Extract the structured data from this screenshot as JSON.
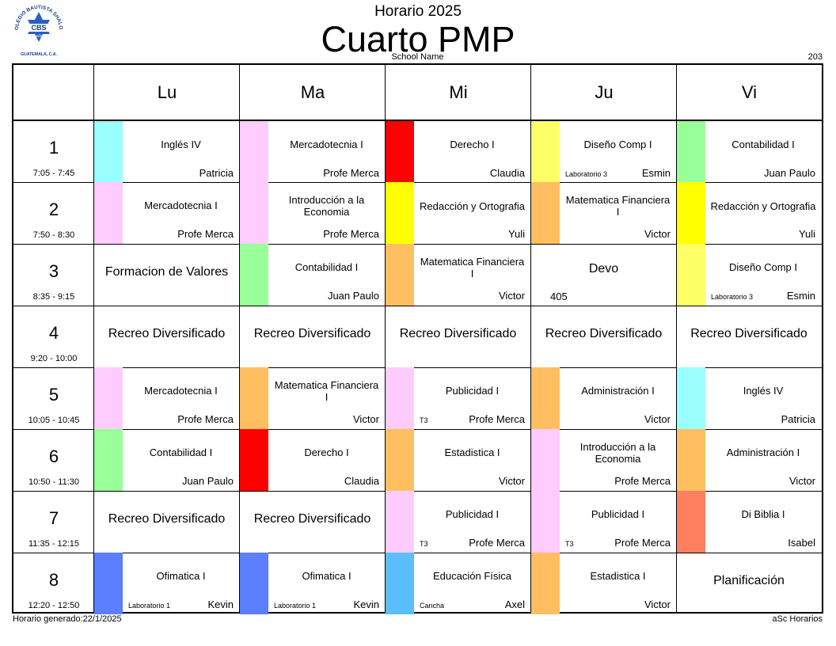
{
  "header": {
    "logo_text": {
      "top": "COLEGIO BAUTISTA SHALOM",
      "initials": "CBS",
      "script": "Shalom",
      "bottom": "GUATEMALA, C.A."
    },
    "supertitle": "Horario 2025",
    "title": "Cuarto PMP",
    "school_name": "School Name",
    "room": "203"
  },
  "footer": {
    "generated": "Horario generado:22/1/2025",
    "brand": "aSc Horarios"
  },
  "days": [
    "Lu",
    "Ma",
    "Mi",
    "Ju",
    "Vi"
  ],
  "periods": [
    {
      "num": "1",
      "time": "7:05 - 7:45"
    },
    {
      "num": "2",
      "time": "7:50 - 8:30"
    },
    {
      "num": "3",
      "time": "8:35 - 9:15"
    },
    {
      "num": "4",
      "time": "9:20 - 10:00"
    },
    {
      "num": "5",
      "time": "10:05 - 10:45"
    },
    {
      "num": "6",
      "time": "10:50 - 11:30"
    },
    {
      "num": "7",
      "time": "11:35 - 12:15"
    },
    {
      "num": "8",
      "time": "12:20 - 12:50"
    }
  ],
  "rows": [
    [
      {
        "subject": "Inglés IV",
        "teacher": "Patricia",
        "room": "",
        "color": "#99ffff"
      },
      {
        "subject": "Mercadotecnia I",
        "teacher": "Profe Merca",
        "room": "",
        "color": "#ffccff"
      },
      {
        "subject": "Derecho I",
        "teacher": "Claudia",
        "room": "",
        "color": "#ff0000"
      },
      {
        "subject": "Diseño Comp I",
        "teacher": "Esmin",
        "room": "Laboratorio 3",
        "color": "#ffff66"
      },
      {
        "subject": "Contabilidad I",
        "teacher": "Juan Paulo",
        "room": "",
        "color": "#99ff99"
      }
    ],
    [
      {
        "subject": "Mercadotecnia I",
        "teacher": "Profe Merca",
        "room": "",
        "color": "#ffccff"
      },
      {
        "subject": "Introducción a la Economia",
        "teacher": "Profe Merca",
        "room": "",
        "color": "#ffccff"
      },
      {
        "subject": "Redacción y Ortografia",
        "teacher": "Yuli",
        "room": "",
        "color": "#ffff00"
      },
      {
        "subject": "Matematica Financiera I",
        "teacher": "Victor",
        "room": "",
        "color": "#ffbf60"
      },
      {
        "subject": "Redacción y Ortografia",
        "teacher": "Yuli",
        "room": "",
        "color": "#ffff00"
      }
    ],
    [
      {
        "subject": "Formacion de Valores",
        "teacher": "",
        "room": "",
        "color": ""
      },
      {
        "subject": "Contabilidad I",
        "teacher": "Juan Paulo",
        "room": "",
        "color": "#99ff99"
      },
      {
        "subject": "Matematica Financiera I",
        "teacher": "Victor",
        "room": "",
        "color": "#ffbf60"
      },
      {
        "subject": "Devo",
        "teacher": "",
        "room": "405",
        "color": ""
      },
      {
        "subject": "Diseño Comp I",
        "teacher": "Esmin",
        "room": "Laboratorio 3",
        "color": "#ffff66"
      }
    ],
    [
      {
        "subject": "Recreo Diversificado",
        "teacher": "",
        "room": "",
        "color": ""
      },
      {
        "subject": "Recreo Diversificado",
        "teacher": "",
        "room": "",
        "color": ""
      },
      {
        "subject": "Recreo Diversificado",
        "teacher": "",
        "room": "",
        "color": ""
      },
      {
        "subject": "Recreo Diversificado",
        "teacher": "",
        "room": "",
        "color": ""
      },
      {
        "subject": "Recreo Diversificado",
        "teacher": "",
        "room": "",
        "color": ""
      }
    ],
    [
      {
        "subject": "Mercadotecnia I",
        "teacher": "Profe Merca",
        "room": "",
        "color": "#ffccff"
      },
      {
        "subject": "Matematica Financiera I",
        "teacher": "Victor",
        "room": "",
        "color": "#ffbf60"
      },
      {
        "subject": "Publicidad I",
        "teacher": "Profe Merca",
        "room": "T3",
        "color": "#ffccff"
      },
      {
        "subject": "Administración I",
        "teacher": "Victor",
        "room": "",
        "color": "#ffbf60"
      },
      {
        "subject": "Inglés IV",
        "teacher": "Patricia",
        "room": "",
        "color": "#99ffff"
      }
    ],
    [
      {
        "subject": "Contabilidad I",
        "teacher": "Juan Paulo",
        "room": "",
        "color": "#99ff99"
      },
      {
        "subject": "Derecho I",
        "teacher": "Claudia",
        "room": "",
        "color": "#ff0000"
      },
      {
        "subject": "Estadistica I",
        "teacher": "Victor",
        "room": "",
        "color": "#ffbf60"
      },
      {
        "subject": "Introducción a la Economia",
        "teacher": "Profe Merca",
        "room": "",
        "color": "#ffccff"
      },
      {
        "subject": "Administración I",
        "teacher": "Victor",
        "room": "",
        "color": "#ffbf60"
      }
    ],
    [
      {
        "subject": "Recreo Diversificado",
        "teacher": "",
        "room": "",
        "color": ""
      },
      {
        "subject": "Recreo Diversificado",
        "teacher": "",
        "room": "",
        "color": ""
      },
      {
        "subject": "Publicidad I",
        "teacher": "Profe Merca",
        "room": "T3",
        "color": "#ffccff"
      },
      {
        "subject": "Publicidad I",
        "teacher": "Profe Merca",
        "room": "T3",
        "color": "#ffccff"
      },
      {
        "subject": "Di Biblia I",
        "teacher": "Isabel",
        "room": "",
        "color": "#ff8060"
      }
    ],
    [
      {
        "subject": "Ofimatica I",
        "teacher": "Kevin",
        "room": "Laboratorio 1",
        "color": "#5b7fff"
      },
      {
        "subject": "Ofimatica I",
        "teacher": "Kevin",
        "room": "Laboratorio 1",
        "color": "#5b7fff"
      },
      {
        "subject": "Educación Física",
        "teacher": "Axel",
        "room": "Cancha",
        "color": "#5bbfff"
      },
      {
        "subject": "Estadistica I",
        "teacher": "Victor",
        "room": "",
        "color": "#ffbf60"
      },
      {
        "subject": "Planificación",
        "teacher": "",
        "room": "",
        "color": ""
      }
    ]
  ]
}
